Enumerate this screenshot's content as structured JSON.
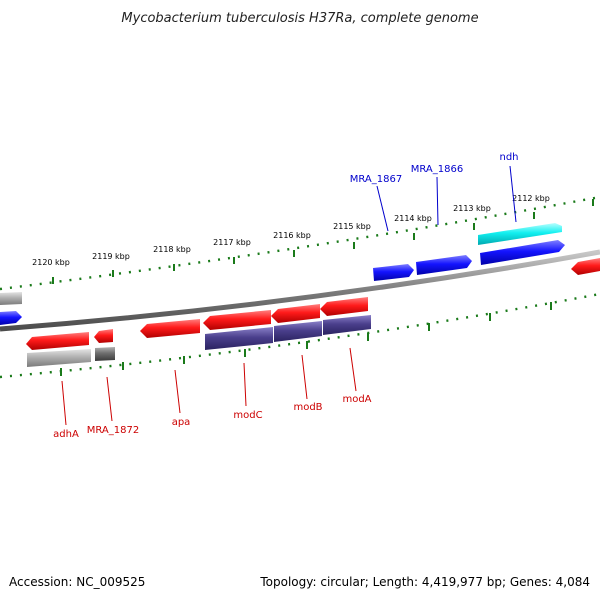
{
  "title": "Mycobacterium tuberculosis H37Ra, complete genome",
  "footer": {
    "accession": "Accession: NC_009525",
    "summary": "Topology: circular; Length: 4,419,977 bp; Genes: 4,084"
  },
  "scale": {
    "unit": "kbp",
    "ticks": [
      "2112 kbp",
      "2113 kbp",
      "2114 kbp",
      "2115 kbp",
      "2116 kbp",
      "2117 kbp",
      "2118 kbp",
      "2119 kbp",
      "2120 kbp"
    ]
  },
  "genes": {
    "forward_labels": [
      "ndh",
      "MRA_1866",
      "MRA_1867"
    ],
    "reverse_labels": [
      "adhA",
      "MRA_1872",
      "apa",
      "modC",
      "modB",
      "modA"
    ]
  },
  "colors": {
    "forward_gene": "#0000ee",
    "reverse_gene": "#ee1111",
    "rna_gene": "#00d8e0",
    "protein_track": "#4a3f8c",
    "pseudo_gray": "#a8a8a8",
    "backbone": "#808080",
    "tick_green": "#1a7a1a"
  }
}
